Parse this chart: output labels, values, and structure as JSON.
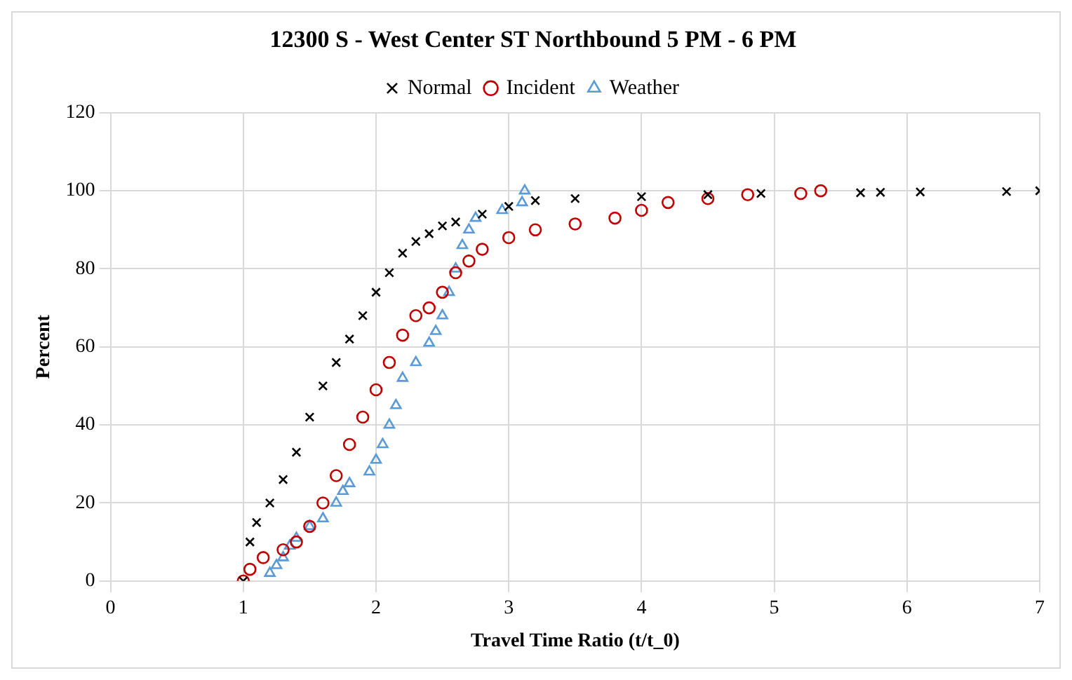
{
  "chart_data": {
    "type": "scatter",
    "title": "12300 S - West Center ST Northbound 5 PM - 6 PM",
    "xlabel": "Travel Time Ratio (t/t_0)",
    "ylabel": "Percent",
    "legend": "top",
    "grid": true,
    "xlim": [
      0,
      7
    ],
    "xticks": [
      0,
      1,
      2,
      3,
      4,
      5,
      6,
      7
    ],
    "ylim": [
      0,
      120
    ],
    "yticks": [
      0,
      20,
      40,
      60,
      80,
      100,
      120
    ],
    "series": [
      {
        "name": "Normal",
        "color": "#000000",
        "marker": "cross",
        "x": [
          1.0,
          1.05,
          1.1,
          1.2,
          1.3,
          1.4,
          1.5,
          1.6,
          1.7,
          1.8,
          1.9,
          2.0,
          2.1,
          2.2,
          2.3,
          2.4,
          2.5,
          2.6,
          2.8,
          3.0,
          3.2,
          3.5,
          4.0,
          4.5,
          4.9,
          5.65,
          5.8,
          6.1,
          6.75,
          7.0
        ],
        "values": [
          0,
          10,
          15,
          20,
          26,
          33,
          42,
          50,
          56,
          62,
          68,
          74,
          79,
          84,
          87,
          89,
          91,
          92,
          94,
          96,
          97.5,
          98,
          98.5,
          99,
          99.3,
          99.5,
          99.6,
          99.7,
          99.8,
          100
        ]
      },
      {
        "name": "Incident",
        "color": "#c00000",
        "marker": "circle",
        "x": [
          1.0,
          1.05,
          1.15,
          1.3,
          1.4,
          1.5,
          1.6,
          1.7,
          1.8,
          1.9,
          2.0,
          2.1,
          2.2,
          2.3,
          2.4,
          2.5,
          2.6,
          2.7,
          2.8,
          3.0,
          3.2,
          3.5,
          3.8,
          4.0,
          4.2,
          4.5,
          4.8,
          5.2,
          5.35
        ],
        "values": [
          0,
          3,
          6,
          8,
          10,
          14,
          20,
          27,
          35,
          42,
          49,
          56,
          63,
          68,
          70,
          74,
          79,
          82,
          85,
          88,
          90,
          91.5,
          93,
          95,
          97,
          98,
          99,
          99.3,
          100
        ]
      },
      {
        "name": "Weather",
        "color": "#5b9bd5",
        "marker": "triangle",
        "x": [
          1.2,
          1.25,
          1.3,
          1.35,
          1.4,
          1.5,
          1.6,
          1.7,
          1.75,
          1.8,
          1.95,
          2.0,
          2.05,
          2.1,
          2.15,
          2.2,
          2.3,
          2.4,
          2.45,
          2.5,
          2.55,
          2.6,
          2.65,
          2.7,
          2.75,
          2.95,
          3.1,
          3.12
        ],
        "values": [
          2,
          4,
          6,
          9,
          11,
          14,
          16,
          20,
          23,
          25,
          28,
          31,
          35,
          40,
          45,
          52,
          56,
          61,
          64,
          68,
          74,
          80,
          86,
          90,
          93,
          95,
          97,
          100
        ]
      }
    ]
  }
}
